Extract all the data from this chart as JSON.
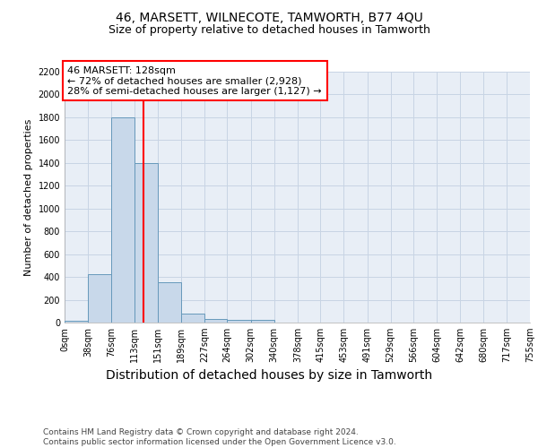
{
  "title": "46, MARSETT, WILNECOTE, TAMWORTH, B77 4QU",
  "subtitle": "Size of property relative to detached houses in Tamworth",
  "xlabel": "Distribution of detached houses by size in Tamworth",
  "ylabel": "Number of detached properties",
  "footer_line1": "Contains HM Land Registry data © Crown copyright and database right 2024.",
  "footer_line2": "Contains public sector information licensed under the Open Government Licence v3.0.",
  "annotation_line1": "46 MARSETT: 128sqm",
  "annotation_line2": "← 72% of detached houses are smaller (2,928)",
  "annotation_line3": "28% of semi-detached houses are larger (1,127) →",
  "bar_edges": [
    0,
    38,
    76,
    113,
    151,
    189,
    227,
    264,
    302,
    340,
    378,
    415,
    453,
    491,
    529,
    566,
    604,
    642,
    680,
    717,
    755
  ],
  "bar_heights": [
    15,
    425,
    1800,
    1400,
    350,
    75,
    30,
    20,
    20,
    0,
    0,
    0,
    0,
    0,
    0,
    0,
    0,
    0,
    0,
    0
  ],
  "bar_color": "#c8d8ea",
  "bar_edge_color": "#6699bb",
  "property_line_x": 128,
  "property_line_color": "red",
  "ylim": [
    0,
    2200
  ],
  "xlim": [
    0,
    755
  ],
  "tick_labels": [
    "0sqm",
    "38sqm",
    "76sqm",
    "113sqm",
    "151sqm",
    "189sqm",
    "227sqm",
    "264sqm",
    "302sqm",
    "340sqm",
    "378sqm",
    "415sqm",
    "453sqm",
    "491sqm",
    "529sqm",
    "566sqm",
    "604sqm",
    "642sqm",
    "680sqm",
    "717sqm",
    "755sqm"
  ],
  "grid_color": "#c8d4e4",
  "bg_color": "#e8eef6",
  "title_fontsize": 10,
  "subtitle_fontsize": 9,
  "xlabel_fontsize": 10,
  "ylabel_fontsize": 8,
  "tick_fontsize": 7,
  "annotation_fontsize": 8,
  "footer_fontsize": 6.5
}
